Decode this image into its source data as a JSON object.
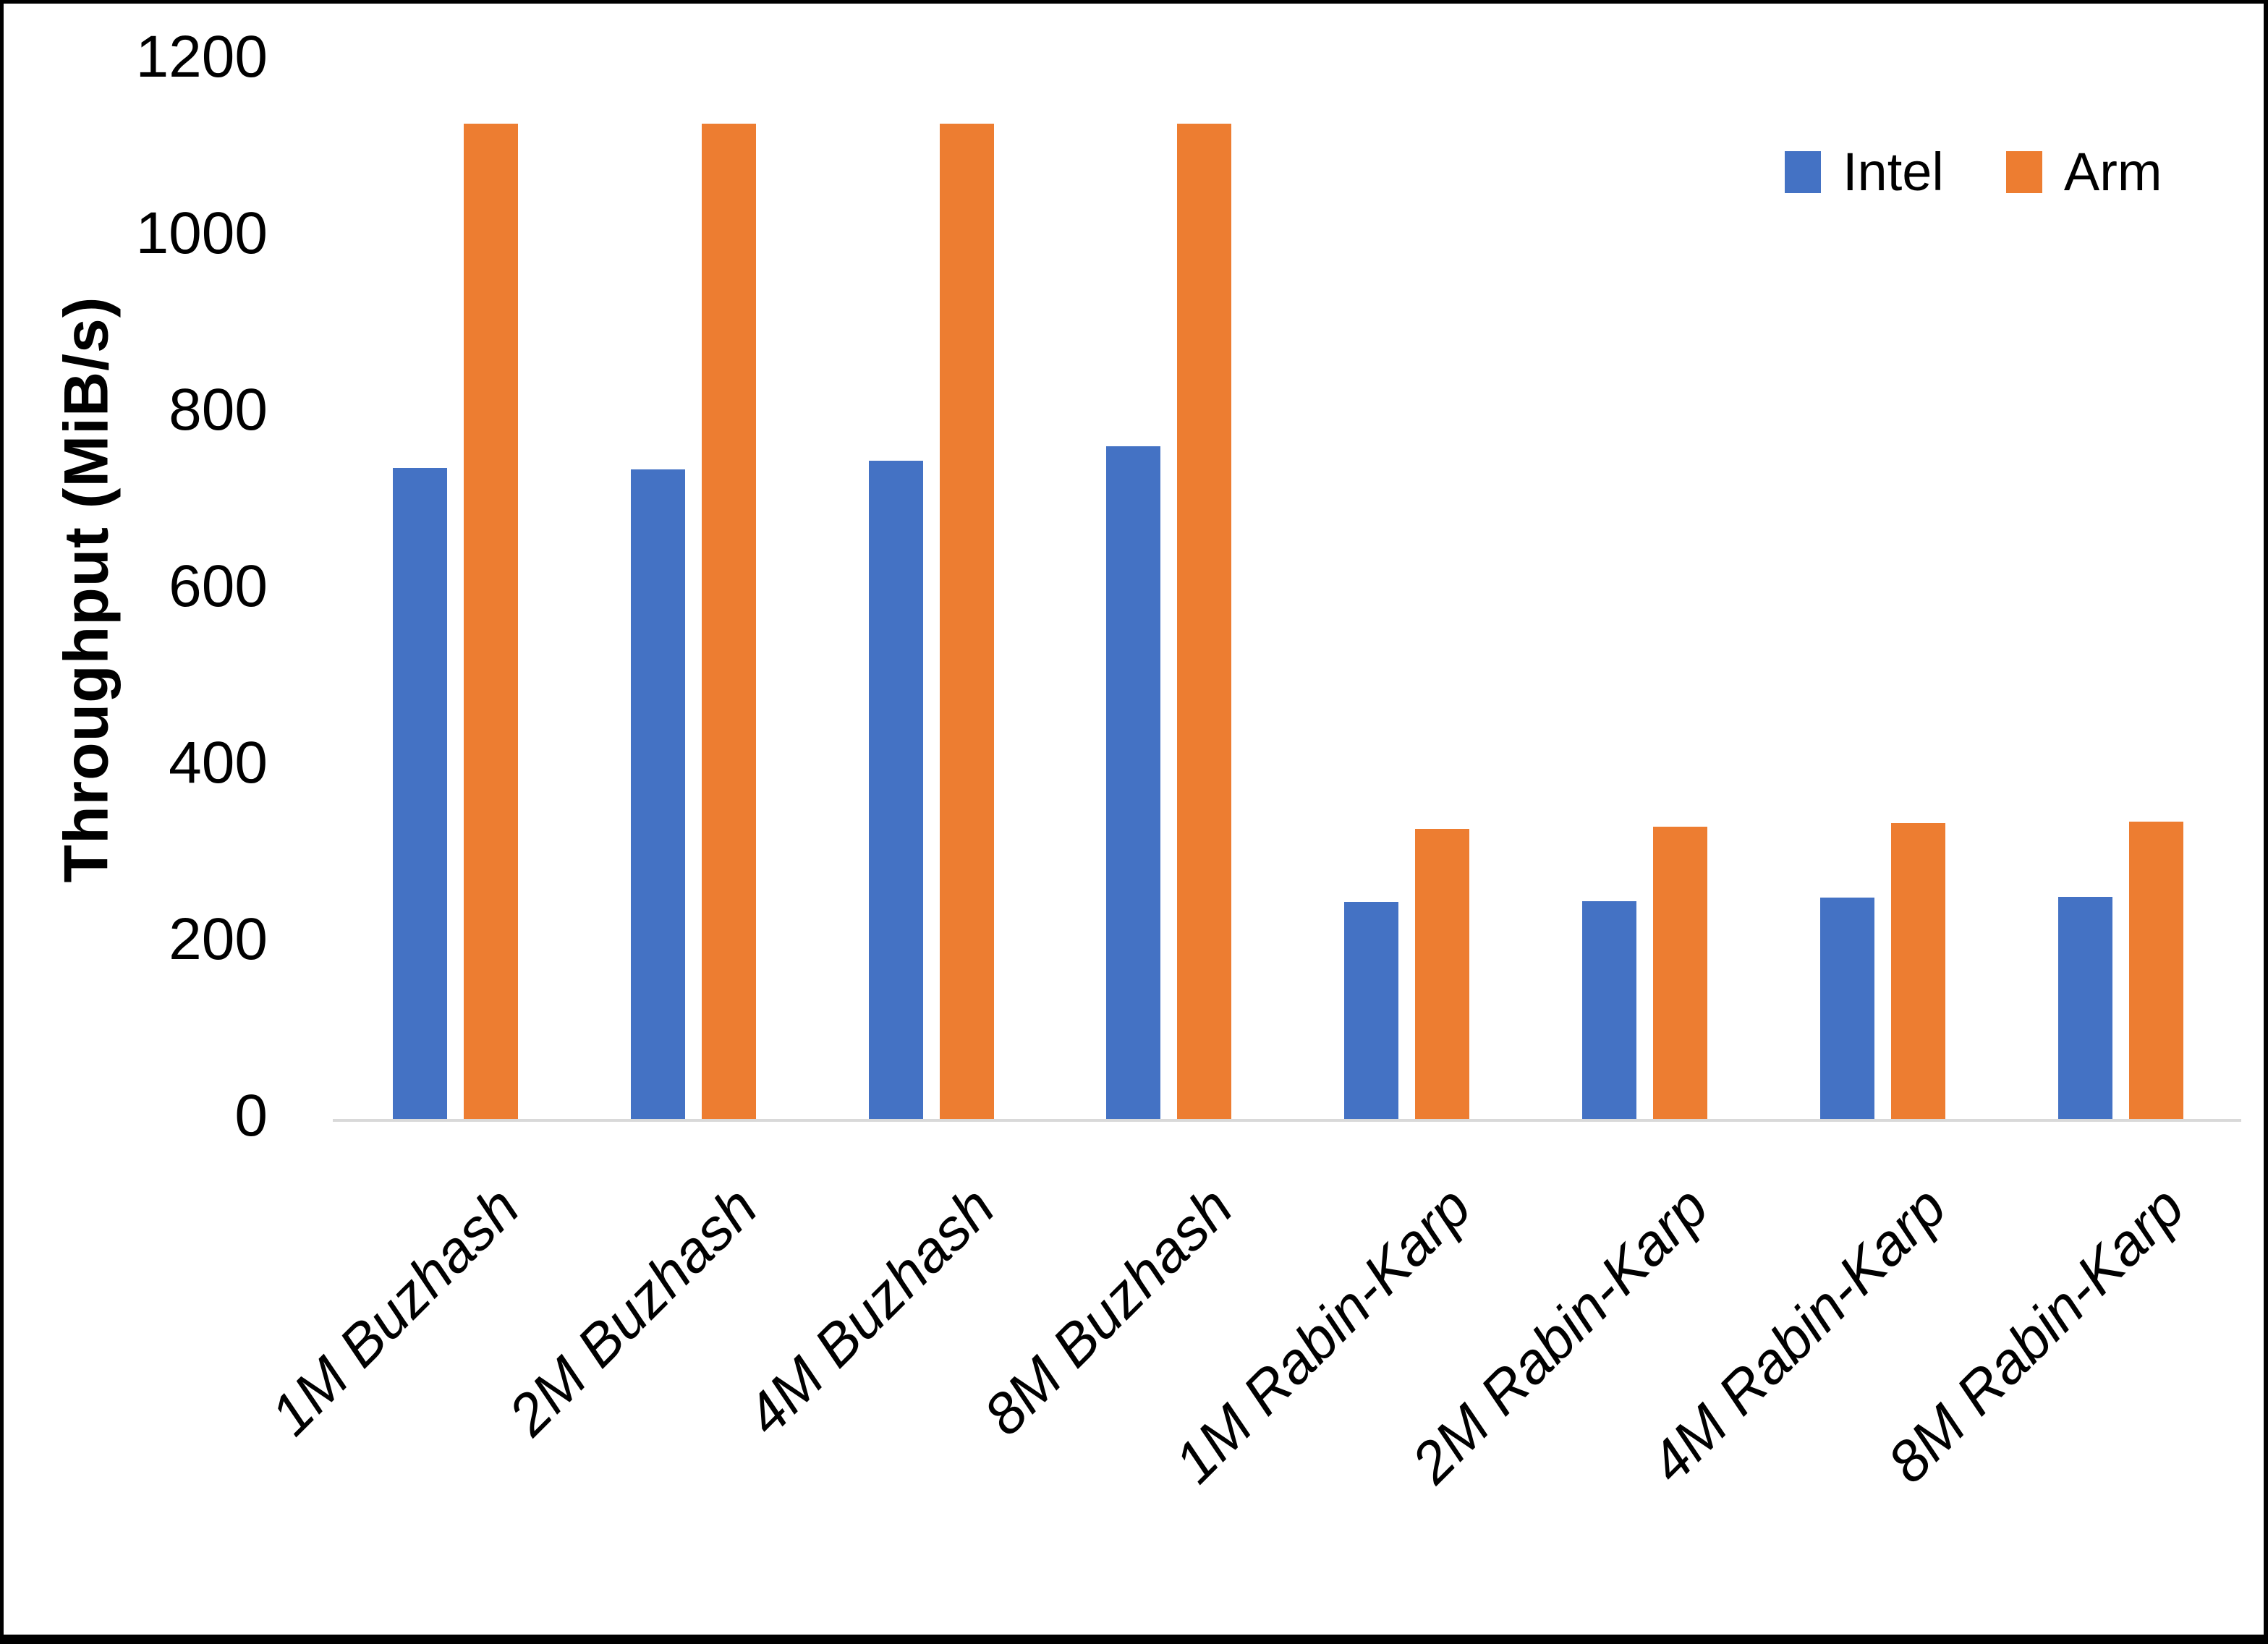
{
  "chart_data": {
    "type": "bar",
    "title": "",
    "ylabel": "Throughput (MiB/s)",
    "xlabel": "",
    "ylim": [
      0,
      1200
    ],
    "yticks": [
      0,
      200,
      400,
      600,
      800,
      1000,
      1200
    ],
    "grid": false,
    "legend_position": "top-right",
    "categories": [
      "1M Buzhash",
      "2M Buzhash",
      "4M Buzhash",
      "8M Buzhash",
      "1M Rabin-Karp",
      "2M Rabin-Karp",
      "4M Rabin-Karp",
      "8M Rabin-Karp"
    ],
    "series": [
      {
        "name": "Intel",
        "color": "#4472C4",
        "values": [
          738,
          736,
          746,
          762,
          246,
          247,
          251,
          252
        ]
      },
      {
        "name": "Arm",
        "color": "#ED7D31",
        "values": [
          1128,
          1128,
          1128,
          1128,
          329,
          331,
          335,
          337
        ]
      }
    ],
    "axis_line_color": "#D9D9D9"
  }
}
